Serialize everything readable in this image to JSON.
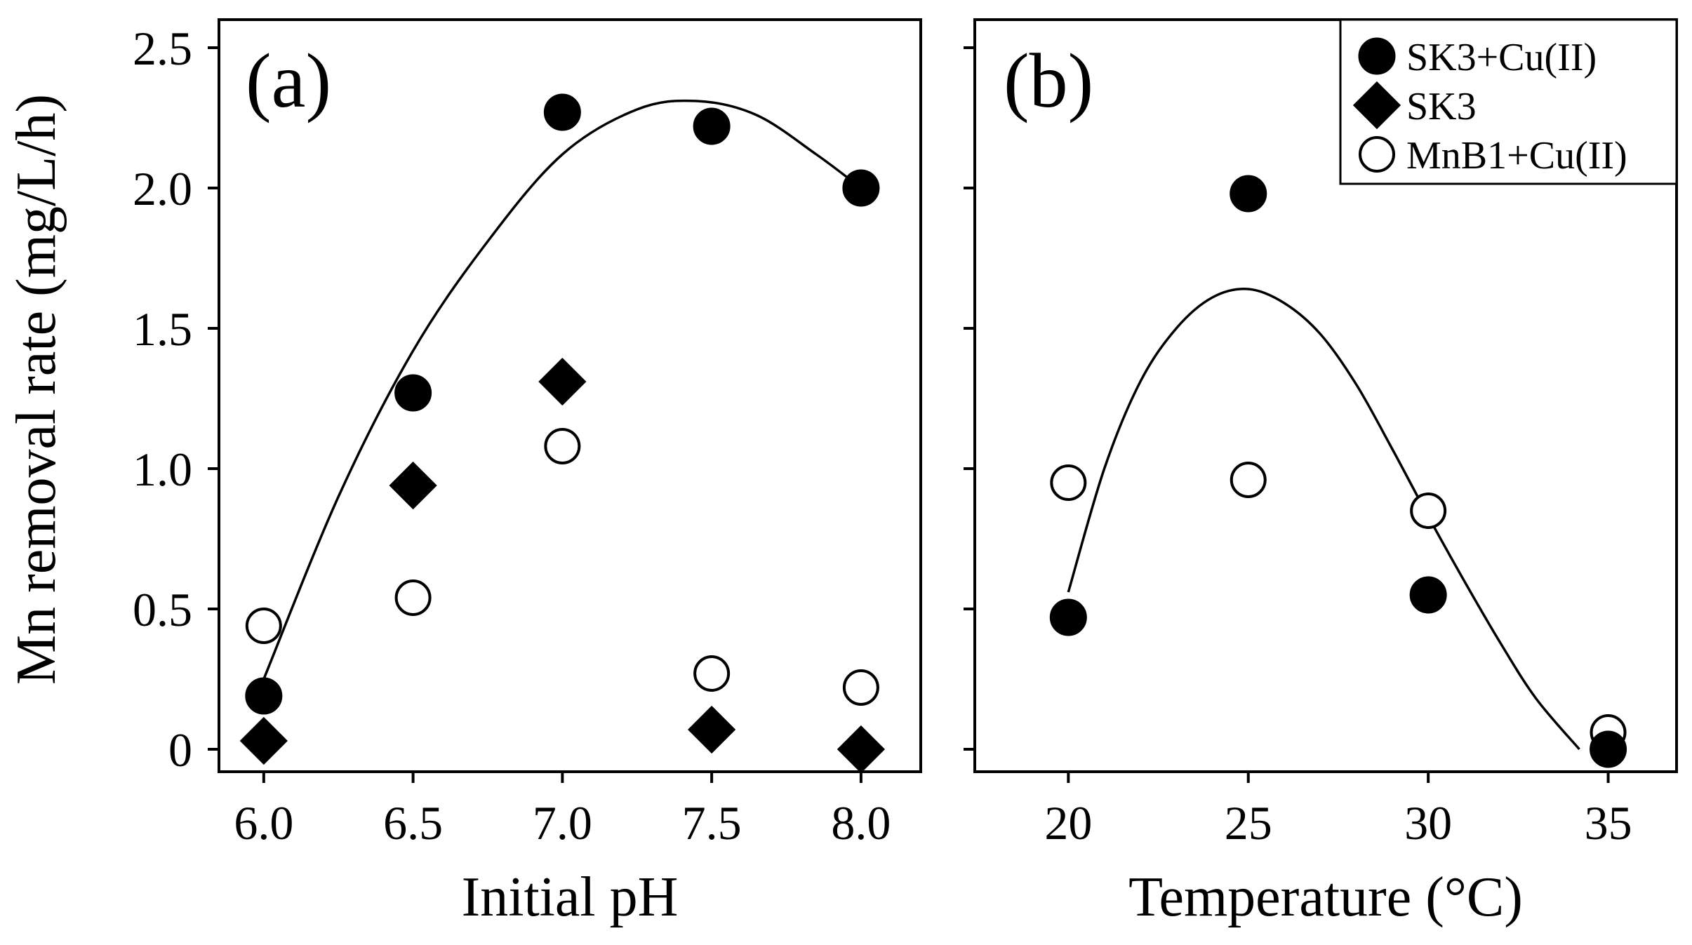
{
  "figure": {
    "ylabel": "Mn removal rate (mg/L/h)"
  },
  "legend": [
    {
      "label": "SK3+Cu(II)",
      "marker": "filled-circle"
    },
    {
      "label": "SK3",
      "marker": "filled-diamond"
    },
    {
      "label": "MnB1+Cu(II)",
      "marker": "open-circle"
    }
  ],
  "chart_data": [
    {
      "type": "scatter",
      "panel_label": "(a)",
      "xlabel": "Initial pH",
      "ylabel": "Mn removal rate (mg/L/h)",
      "xlim": [
        5.85,
        8.2
      ],
      "ylim": [
        -0.08,
        2.6
      ],
      "xticks": [
        6.0,
        6.5,
        7.0,
        7.5,
        8.0
      ],
      "xtick_labels": [
        "6.0",
        "6.5",
        "7.0",
        "7.5",
        "8.0"
      ],
      "yticks": [
        0,
        0.5,
        1.0,
        1.5,
        2.0,
        2.5
      ],
      "ytick_labels": [
        "0",
        "0.5",
        "1.0",
        "1.5",
        "2.0",
        "2.5"
      ],
      "series": [
        {
          "name": "SK3+Cu(II)",
          "marker": "filled-circle",
          "x": [
            6.0,
            6.5,
            7.0,
            7.5,
            8.0
          ],
          "y": [
            0.19,
            1.27,
            2.27,
            2.22,
            2.0
          ]
        },
        {
          "name": "SK3",
          "marker": "filled-diamond",
          "x": [
            6.0,
            6.5,
            7.0,
            7.5,
            8.0
          ],
          "y": [
            0.03,
            0.94,
            1.31,
            0.07,
            0.0
          ]
        },
        {
          "name": "MnB1+Cu(II)",
          "marker": "open-circle",
          "x": [
            6.0,
            6.5,
            7.0,
            7.5,
            8.0
          ],
          "y": [
            0.44,
            0.54,
            1.08,
            0.27,
            0.22
          ]
        }
      ],
      "fit_curve": {
        "description": "quadratic fit to SK3+Cu(II)",
        "x": [
          6.0,
          6.25,
          6.5,
          6.75,
          7.0,
          7.25,
          7.45,
          7.65,
          7.85,
          8.0
        ],
        "y": [
          0.25,
          0.9,
          1.42,
          1.81,
          2.12,
          2.28,
          2.31,
          2.26,
          2.12,
          2.0
        ]
      }
    },
    {
      "type": "scatter",
      "panel_label": "(b)",
      "xlabel": "Temperature (°C)",
      "ylabel": "Mn removal rate (mg/L/h)",
      "xlim": [
        17.4,
        36.9
      ],
      "ylim": [
        -0.08,
        2.6
      ],
      "xticks": [
        20,
        25,
        30,
        35
      ],
      "xtick_labels": [
        "20",
        "25",
        "30",
        "35"
      ],
      "yticks": [
        0,
        0.5,
        1.0,
        1.5,
        2.0,
        2.5
      ],
      "series": [
        {
          "name": "SK3+Cu(II)",
          "marker": "filled-circle",
          "x": [
            20,
            25,
            30,
            35
          ],
          "y": [
            0.47,
            1.98,
            0.55,
            0.0
          ]
        },
        {
          "name": "MnB1+Cu(II)",
          "marker": "open-circle",
          "x": [
            20,
            25,
            30,
            35
          ],
          "y": [
            0.95,
            0.96,
            0.85,
            0.06
          ]
        }
      ],
      "fit_curve": {
        "description": "quadratic fit to SK3+Cu(II)",
        "x": [
          20,
          21,
          22,
          23,
          24,
          25,
          26,
          27,
          28,
          29,
          30,
          31,
          32,
          33,
          34.2
        ],
        "y": [
          0.56,
          1.0,
          1.31,
          1.5,
          1.61,
          1.64,
          1.59,
          1.48,
          1.3,
          1.07,
          0.83,
          0.6,
          0.38,
          0.18,
          0.0
        ]
      }
    }
  ]
}
